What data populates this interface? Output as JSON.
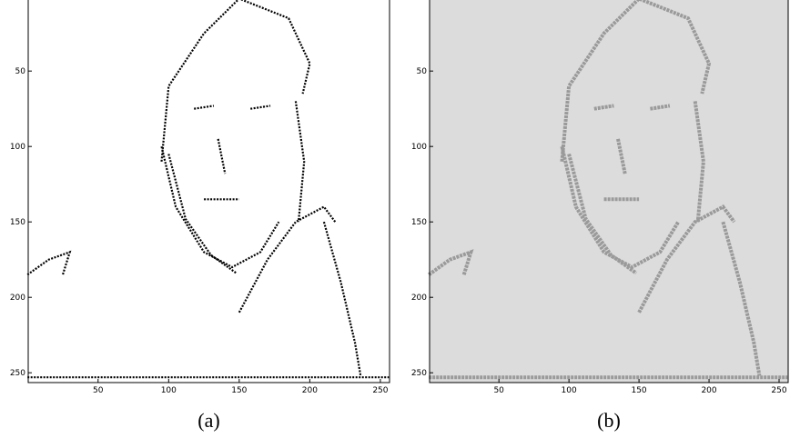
{
  "figure": {
    "panels": [
      {
        "caption": "(a)",
        "xlim": [
          0.5,
          256.5
        ],
        "ylim": [
          256.5,
          0.5
        ],
        "xticks": [
          50,
          100,
          150,
          200,
          250
        ],
        "yticks": [
          50,
          100,
          150,
          200,
          250
        ]
      },
      {
        "caption": "(b)",
        "xlim": [
          0.5,
          256.5
        ],
        "ylim": [
          256.5,
          0.5
        ],
        "xticks": [
          50,
          100,
          150,
          200,
          250
        ],
        "yticks": [
          50,
          100,
          150,
          200,
          250
        ]
      }
    ]
  }
}
